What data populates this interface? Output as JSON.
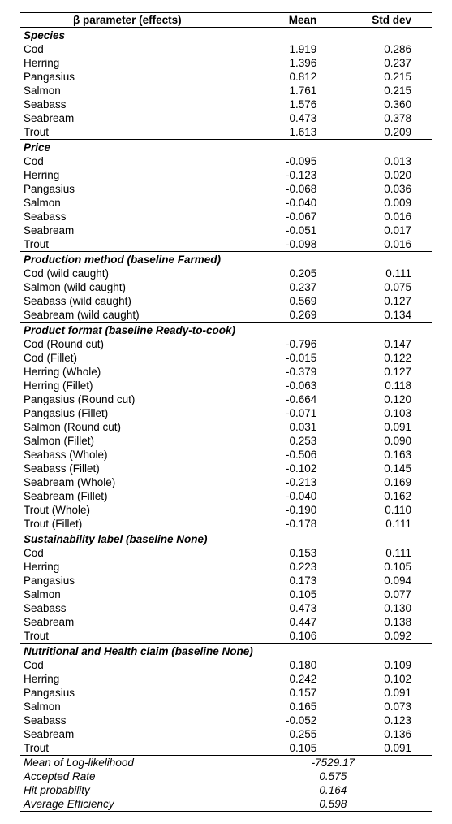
{
  "columns": {
    "param": "β parameter (effects)",
    "mean": "Mean",
    "std": "Std dev"
  },
  "sections": [
    {
      "title": "Species",
      "rows": [
        {
          "label": "Cod",
          "mean": "1.919",
          "std": "0.286"
        },
        {
          "label": "Herring",
          "mean": "1.396",
          "std": "0.237"
        },
        {
          "label": "Pangasius",
          "mean": "0.812",
          "std": "0.215"
        },
        {
          "label": "Salmon",
          "mean": "1.761",
          "std": "0.215"
        },
        {
          "label": "Seabass",
          "mean": "1.576",
          "std": "0.360"
        },
        {
          "label": "Seabream",
          "mean": "0.473",
          "std": "0.378"
        },
        {
          "label": "Trout",
          "mean": "1.613",
          "std": "0.209"
        }
      ]
    },
    {
      "title": "Price",
      "rows": [
        {
          "label": "Cod",
          "mean": "-0.095",
          "std": "0.013"
        },
        {
          "label": "Herring",
          "mean": "-0.123",
          "std": "0.020"
        },
        {
          "label": "Pangasius",
          "mean": "-0.068",
          "std": "0.036"
        },
        {
          "label": "Salmon",
          "mean": "-0.040",
          "std": "0.009"
        },
        {
          "label": "Seabass",
          "mean": "-0.067",
          "std": "0.016"
        },
        {
          "label": "Seabream",
          "mean": "-0.051",
          "std": "0.017"
        },
        {
          "label": "Trout",
          "mean": "-0.098",
          "std": "0.016"
        }
      ]
    },
    {
      "title": "Production method (baseline Farmed)",
      "rows": [
        {
          "label": "Cod (wild caught)",
          "mean": "0.205",
          "std": "0.111"
        },
        {
          "label": "Salmon (wild caught)",
          "mean": "0.237",
          "std": "0.075"
        },
        {
          "label": "Seabass (wild caught)",
          "mean": "0.569",
          "std": "0.127"
        },
        {
          "label": "Seabream (wild caught)",
          "mean": "0.269",
          "std": "0.134"
        }
      ]
    },
    {
      "title": "Product format (baseline Ready-to-cook)",
      "rows": [
        {
          "label": "Cod (Round cut)",
          "mean": "-0.796",
          "std": "0.147"
        },
        {
          "label": "Cod (Fillet)",
          "mean": "-0.015",
          "std": "0.122"
        },
        {
          "label": "Herring (Whole)",
          "mean": "-0.379",
          "std": "0.127"
        },
        {
          "label": "Herring (Fillet)",
          "mean": "-0.063",
          "std": "0.118"
        },
        {
          "label": "Pangasius (Round cut)",
          "mean": "-0.664",
          "std": "0.120"
        },
        {
          "label": "Pangasius (Fillet)",
          "mean": "-0.071",
          "std": "0.103"
        },
        {
          "label": "Salmon (Round cut)",
          "mean": "0.031",
          "std": "0.091"
        },
        {
          "label": "Salmon (Fillet)",
          "mean": "0.253",
          "std": "0.090"
        },
        {
          "label": "Seabass (Whole)",
          "mean": "-0.506",
          "std": "0.163"
        },
        {
          "label": "Seabass (Fillet)",
          "mean": "-0.102",
          "std": "0.145"
        },
        {
          "label": "Seabream (Whole)",
          "mean": "-0.213",
          "std": "0.169"
        },
        {
          "label": "Seabream (Fillet)",
          "mean": "-0.040",
          "std": "0.162"
        },
        {
          "label": "Trout (Whole)",
          "mean": "-0.190",
          "std": "0.110"
        },
        {
          "label": "Trout (Fillet)",
          "mean": "-0.178",
          "std": "0.111"
        }
      ]
    },
    {
      "title": "Sustainability label (baseline None)",
      "rows": [
        {
          "label": "Cod",
          "mean": "0.153",
          "std": "0.111"
        },
        {
          "label": "Herring",
          "mean": "0.223",
          "std": "0.105"
        },
        {
          "label": "Pangasius",
          "mean": "0.173",
          "std": "0.094"
        },
        {
          "label": "Salmon",
          "mean": "0.105",
          "std": "0.077"
        },
        {
          "label": "Seabass",
          "mean": "0.473",
          "std": "0.130"
        },
        {
          "label": "Seabream",
          "mean": "0.447",
          "std": "0.138"
        },
        {
          "label": "Trout",
          "mean": "0.106",
          "std": "0.092"
        }
      ]
    },
    {
      "title": "Nutritional and Health claim (baseline None)",
      "rows": [
        {
          "label": "Cod",
          "mean": "0.180",
          "std": "0.109"
        },
        {
          "label": "Herring",
          "mean": "0.242",
          "std": "0.102"
        },
        {
          "label": "Pangasius",
          "mean": "0.157",
          "std": "0.091"
        },
        {
          "label": "Salmon",
          "mean": "0.165",
          "std": "0.073"
        },
        {
          "label": "Seabass",
          "mean": "-0.052",
          "std": "0.123"
        },
        {
          "label": "Seabream",
          "mean": "0.255",
          "std": "0.136"
        },
        {
          "label": "Trout",
          "mean": "0.105",
          "std": "0.091"
        }
      ]
    }
  ],
  "footer": [
    {
      "label": "Mean of Log-likelihood",
      "value": "-7529.17"
    },
    {
      "label": "Accepted Rate",
      "value": "0.575"
    },
    {
      "label": "Hit probability",
      "value": "0.164"
    },
    {
      "label": "Average Efficiency",
      "value": "0.598"
    }
  ]
}
